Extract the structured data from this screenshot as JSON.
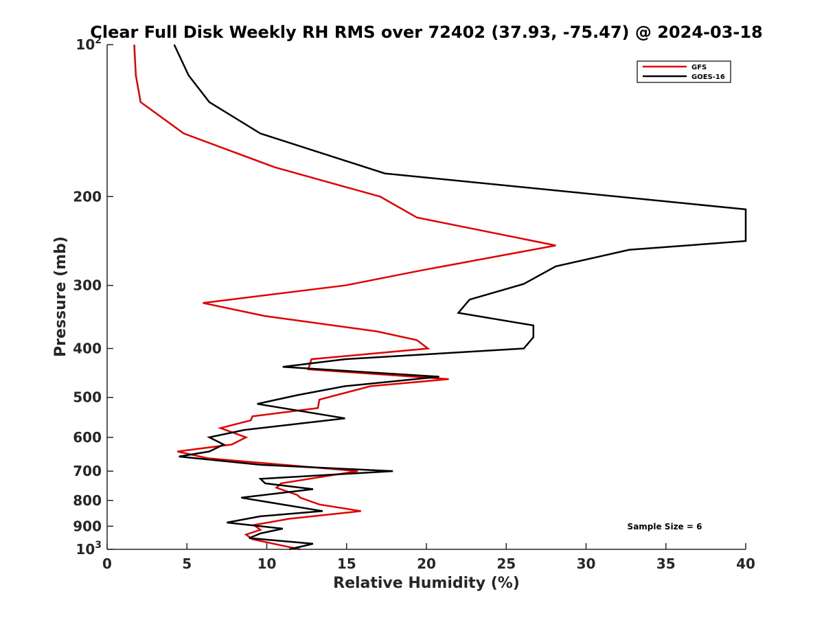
{
  "chart_data": {
    "type": "line",
    "title": "Clear Full Disk Weekly RH RMS over 72402 (37.93, -75.47) @ 2024-03-18",
    "xlabel": "Relative Humidity (%)",
    "ylabel": "Pressure (mb)",
    "xlim": [
      0,
      40
    ],
    "ylim": [
      100,
      1000
    ],
    "yscale": "log",
    "yaxis_reversed": true,
    "xticks": [
      0,
      5,
      10,
      15,
      20,
      25,
      30,
      35,
      40
    ],
    "xtick_labels": [
      "0",
      "5",
      "10",
      "15",
      "20",
      "25",
      "30",
      "35",
      "40"
    ],
    "yticks": [
      {
        "value": 100,
        "base": "10",
        "exp": "2"
      },
      {
        "value": 200,
        "base": "200",
        "exp": ""
      },
      {
        "value": 300,
        "base": "300",
        "exp": ""
      },
      {
        "value": 400,
        "base": "400",
        "exp": ""
      },
      {
        "value": 500,
        "base": "500",
        "exp": ""
      },
      {
        "value": 600,
        "base": "600",
        "exp": ""
      },
      {
        "value": 700,
        "base": "700",
        "exp": ""
      },
      {
        "value": 800,
        "base": "800",
        "exp": ""
      },
      {
        "value": 900,
        "base": "900",
        "exp": ""
      },
      {
        "value": 1000,
        "base": "10",
        "exp": "3"
      }
    ],
    "grid": false,
    "legend_position": "top-right",
    "annotation": "Sample Size = 6",
    "series": [
      {
        "name": "GFS",
        "color": "#e00000",
        "points": [
          [
            1.7,
            100
          ],
          [
            1.8,
            115
          ],
          [
            2.1,
            130
          ],
          [
            4.8,
            150
          ],
          [
            10.5,
            175
          ],
          [
            17.1,
            200
          ],
          [
            19.4,
            220
          ],
          [
            28.1,
            250
          ],
          [
            19.7,
            280
          ],
          [
            14.9,
            300
          ],
          [
            6.0,
            325
          ],
          [
            9.9,
            345
          ],
          [
            16.9,
            370
          ],
          [
            19.4,
            385
          ],
          [
            20.1,
            400
          ],
          [
            12.8,
            420
          ],
          [
            12.6,
            440
          ],
          [
            21.4,
            460
          ],
          [
            16.5,
            475
          ],
          [
            13.3,
            505
          ],
          [
            13.2,
            525
          ],
          [
            9.1,
            545
          ],
          [
            9.0,
            555
          ],
          [
            7.1,
            575
          ],
          [
            8.7,
            600
          ],
          [
            7.8,
            620
          ],
          [
            4.4,
            640
          ],
          [
            6.3,
            660
          ],
          [
            15.7,
            700
          ],
          [
            10.9,
            740
          ],
          [
            10.6,
            755
          ],
          [
            11.9,
            780
          ],
          [
            12.1,
            790
          ],
          [
            13.3,
            815
          ],
          [
            15.9,
            840
          ],
          [
            11.4,
            870
          ],
          [
            9.2,
            895
          ],
          [
            9.6,
            915
          ],
          [
            8.7,
            935
          ],
          [
            9.1,
            955
          ],
          [
            11.1,
            985
          ],
          [
            12.1,
            1000
          ]
        ]
      },
      {
        "name": "GOES-16",
        "color": "#000000",
        "points": [
          [
            4.2,
            100
          ],
          [
            5.1,
            115
          ],
          [
            6.4,
            130
          ],
          [
            9.6,
            150
          ],
          [
            17.4,
            180
          ],
          [
            40.0,
            212
          ],
          [
            40.0,
            245
          ],
          [
            32.7,
            255
          ],
          [
            28.1,
            275
          ],
          [
            26.1,
            298
          ],
          [
            22.7,
            320
          ],
          [
            22.0,
            340
          ],
          [
            26.7,
            360
          ],
          [
            26.7,
            380
          ],
          [
            26.1,
            400
          ],
          [
            14.9,
            420
          ],
          [
            11.0,
            435
          ],
          [
            20.8,
            455
          ],
          [
            14.9,
            475
          ],
          [
            11.9,
            495
          ],
          [
            9.4,
            515
          ],
          [
            14.9,
            550
          ],
          [
            8.6,
            580
          ],
          [
            6.4,
            600
          ],
          [
            7.3,
            620
          ],
          [
            6.4,
            640
          ],
          [
            4.5,
            655
          ],
          [
            9.6,
            680
          ],
          [
            17.9,
            700
          ],
          [
            9.6,
            725
          ],
          [
            9.9,
            740
          ],
          [
            12.9,
            760
          ],
          [
            8.4,
            790
          ],
          [
            13.5,
            840
          ],
          [
            9.6,
            860
          ],
          [
            7.5,
            885
          ],
          [
            11.0,
            910
          ],
          [
            9.6,
            930
          ],
          [
            8.9,
            950
          ],
          [
            12.9,
            975
          ],
          [
            11.4,
            1000
          ]
        ]
      }
    ]
  }
}
